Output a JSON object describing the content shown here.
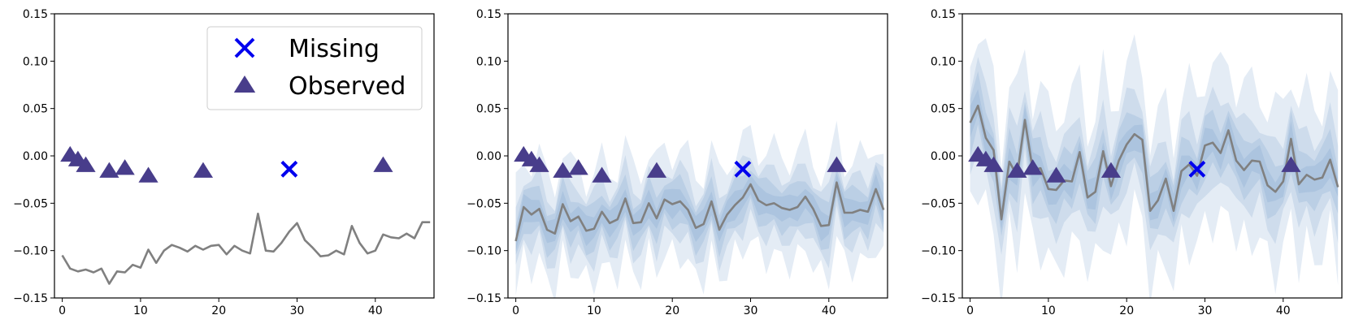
{
  "chart_data": [
    {
      "type": "line",
      "xlim": [
        -1,
        47.5
      ],
      "ylim": [
        -0.15,
        0.15
      ],
      "xticks": [
        0,
        10,
        20,
        30,
        40
      ],
      "yticks": [
        -0.15,
        -0.1,
        -0.05,
        0.0,
        0.05,
        0.1,
        0.15
      ],
      "ytick_labels": [
        "−0.15",
        "−0.10",
        "−0.05",
        "0.00",
        "0.05",
        "0.10",
        "0.15"
      ],
      "legend": {
        "placement": "top-right",
        "entries": [
          {
            "label": "Missing",
            "marker": "x",
            "color": "#0000ee"
          },
          {
            "label": "Observed",
            "marker": "triangle",
            "color": "#483d8b"
          }
        ]
      },
      "line": {
        "color": "#808080",
        "x": [
          0,
          1,
          2,
          3,
          4,
          5,
          6,
          7,
          8,
          9,
          10,
          11,
          12,
          13,
          14,
          15,
          16,
          17,
          18,
          19,
          20,
          21,
          22,
          23,
          24,
          25,
          26,
          27,
          28,
          29,
          30,
          31,
          32,
          33,
          34,
          35,
          36,
          37,
          38,
          39,
          40,
          41,
          42,
          43,
          44,
          45,
          46,
          47
        ],
        "y": [
          -0.105,
          -0.119,
          -0.122,
          -0.12,
          -0.123,
          -0.119,
          -0.135,
          -0.122,
          -0.123,
          -0.115,
          -0.118,
          -0.099,
          -0.113,
          -0.1,
          -0.094,
          -0.097,
          -0.101,
          -0.095,
          -0.099,
          -0.095,
          -0.094,
          -0.104,
          -0.095,
          -0.1,
          -0.103,
          -0.061,
          -0.1,
          -0.101,
          -0.092,
          -0.08,
          -0.071,
          -0.089,
          -0.097,
          -0.106,
          -0.105,
          -0.1,
          -0.104,
          -0.074,
          -0.092,
          -0.103,
          -0.1,
          -0.083,
          -0.086,
          -0.087,
          -0.082,
          -0.087,
          -0.07,
          -0.07
        ]
      },
      "observed": {
        "x": [
          1,
          2,
          3,
          6,
          8,
          11,
          18,
          41
        ],
        "y": [
          0.001,
          -0.004,
          -0.01,
          -0.016,
          -0.013,
          -0.021,
          -0.016,
          -0.01
        ]
      },
      "missing": {
        "x": [
          29
        ],
        "y": [
          -0.014
        ]
      }
    },
    {
      "type": "line",
      "xlim": [
        -1,
        47.5
      ],
      "ylim": [
        -0.15,
        0.15
      ],
      "xticks": [
        0,
        10,
        20,
        30,
        40
      ],
      "yticks": [
        -0.15,
        -0.1,
        -0.05,
        0.0,
        0.05,
        0.1,
        0.15
      ],
      "ytick_labels": [
        "−0.15",
        "−0.10",
        "−0.05",
        "0.00",
        "0.05",
        "0.10",
        "0.15"
      ],
      "line": {
        "color": "#808080",
        "x": [
          0,
          1,
          2,
          3,
          4,
          5,
          6,
          7,
          8,
          9,
          10,
          11,
          12,
          13,
          14,
          15,
          16,
          17,
          18,
          19,
          20,
          21,
          22,
          23,
          24,
          25,
          26,
          27,
          28,
          29,
          30,
          31,
          32,
          33,
          34,
          35,
          36,
          37,
          38,
          39,
          40,
          41,
          42,
          43,
          44,
          45,
          46,
          47
        ],
        "y": [
          -0.09,
          -0.054,
          -0.062,
          -0.056,
          -0.078,
          -0.082,
          -0.051,
          -0.069,
          -0.064,
          -0.079,
          -0.077,
          -0.059,
          -0.071,
          -0.067,
          -0.045,
          -0.071,
          -0.07,
          -0.05,
          -0.066,
          -0.046,
          -0.051,
          -0.048,
          -0.057,
          -0.076,
          -0.072,
          -0.048,
          -0.078,
          -0.062,
          -0.052,
          -0.044,
          -0.03,
          -0.047,
          -0.052,
          -0.05,
          -0.055,
          -0.057,
          -0.054,
          -0.043,
          -0.056,
          -0.074,
          -0.073,
          -0.028,
          -0.06,
          -0.06,
          -0.057,
          -0.059,
          -0.035,
          -0.057
        ]
      },
      "band_halfwidths": [
        0.012,
        0.022,
        0.034,
        0.055
      ],
      "band_color": "#6a96c8",
      "observed": {
        "x": [
          1,
          2,
          3,
          6,
          8,
          11,
          18,
          41
        ],
        "y": [
          0.001,
          -0.004,
          -0.01,
          -0.016,
          -0.013,
          -0.021,
          -0.016,
          -0.01
        ]
      },
      "missing": {
        "x": [
          29
        ],
        "y": [
          -0.014
        ]
      }
    },
    {
      "type": "line",
      "xlim": [
        -1,
        47.5
      ],
      "ylim": [
        -0.15,
        0.15
      ],
      "xticks": [
        0,
        10,
        20,
        30,
        40
      ],
      "yticks": [
        -0.15,
        -0.1,
        -0.05,
        0.0,
        0.05,
        0.1,
        0.15
      ],
      "ytick_labels": [
        "−0.15",
        "−0.10",
        "−0.05",
        "0.00",
        "0.05",
        "0.10",
        "0.15"
      ],
      "line": {
        "color": "#808080",
        "x": [
          0,
          1,
          2,
          3,
          4,
          5,
          6,
          7,
          8,
          9,
          10,
          11,
          12,
          13,
          14,
          15,
          16,
          17,
          18,
          19,
          20,
          21,
          22,
          23,
          24,
          25,
          26,
          27,
          28,
          29,
          30,
          31,
          32,
          33,
          34,
          35,
          36,
          37,
          38,
          39,
          40,
          41,
          42,
          43,
          44,
          45,
          46,
          47
        ],
        "y": [
          0.035,
          0.053,
          0.019,
          0.006,
          -0.067,
          -0.006,
          -0.021,
          0.038,
          -0.015,
          -0.013,
          -0.035,
          -0.036,
          -0.026,
          -0.027,
          0.004,
          -0.044,
          -0.038,
          0.005,
          -0.032,
          -0.005,
          0.012,
          0.023,
          0.017,
          -0.058,
          -0.047,
          -0.024,
          -0.058,
          -0.016,
          -0.009,
          -0.021,
          0.011,
          0.014,
          0.003,
          0.027,
          -0.005,
          -0.015,
          -0.005,
          -0.006,
          -0.031,
          -0.038,
          -0.027,
          0.018,
          -0.03,
          -0.02,
          -0.025,
          -0.023,
          -0.004,
          -0.033
        ]
      },
      "band_halfwidths": [
        0.014,
        0.027,
        0.045,
        0.08
      ],
      "band_color": "#6a96c8",
      "observed": {
        "x": [
          1,
          2,
          3,
          6,
          8,
          11,
          18,
          41
        ],
        "y": [
          0.001,
          -0.004,
          -0.01,
          -0.016,
          -0.013,
          -0.021,
          -0.016,
          -0.01
        ]
      },
      "missing": {
        "x": [
          29
        ],
        "y": [
          -0.014
        ]
      }
    }
  ]
}
